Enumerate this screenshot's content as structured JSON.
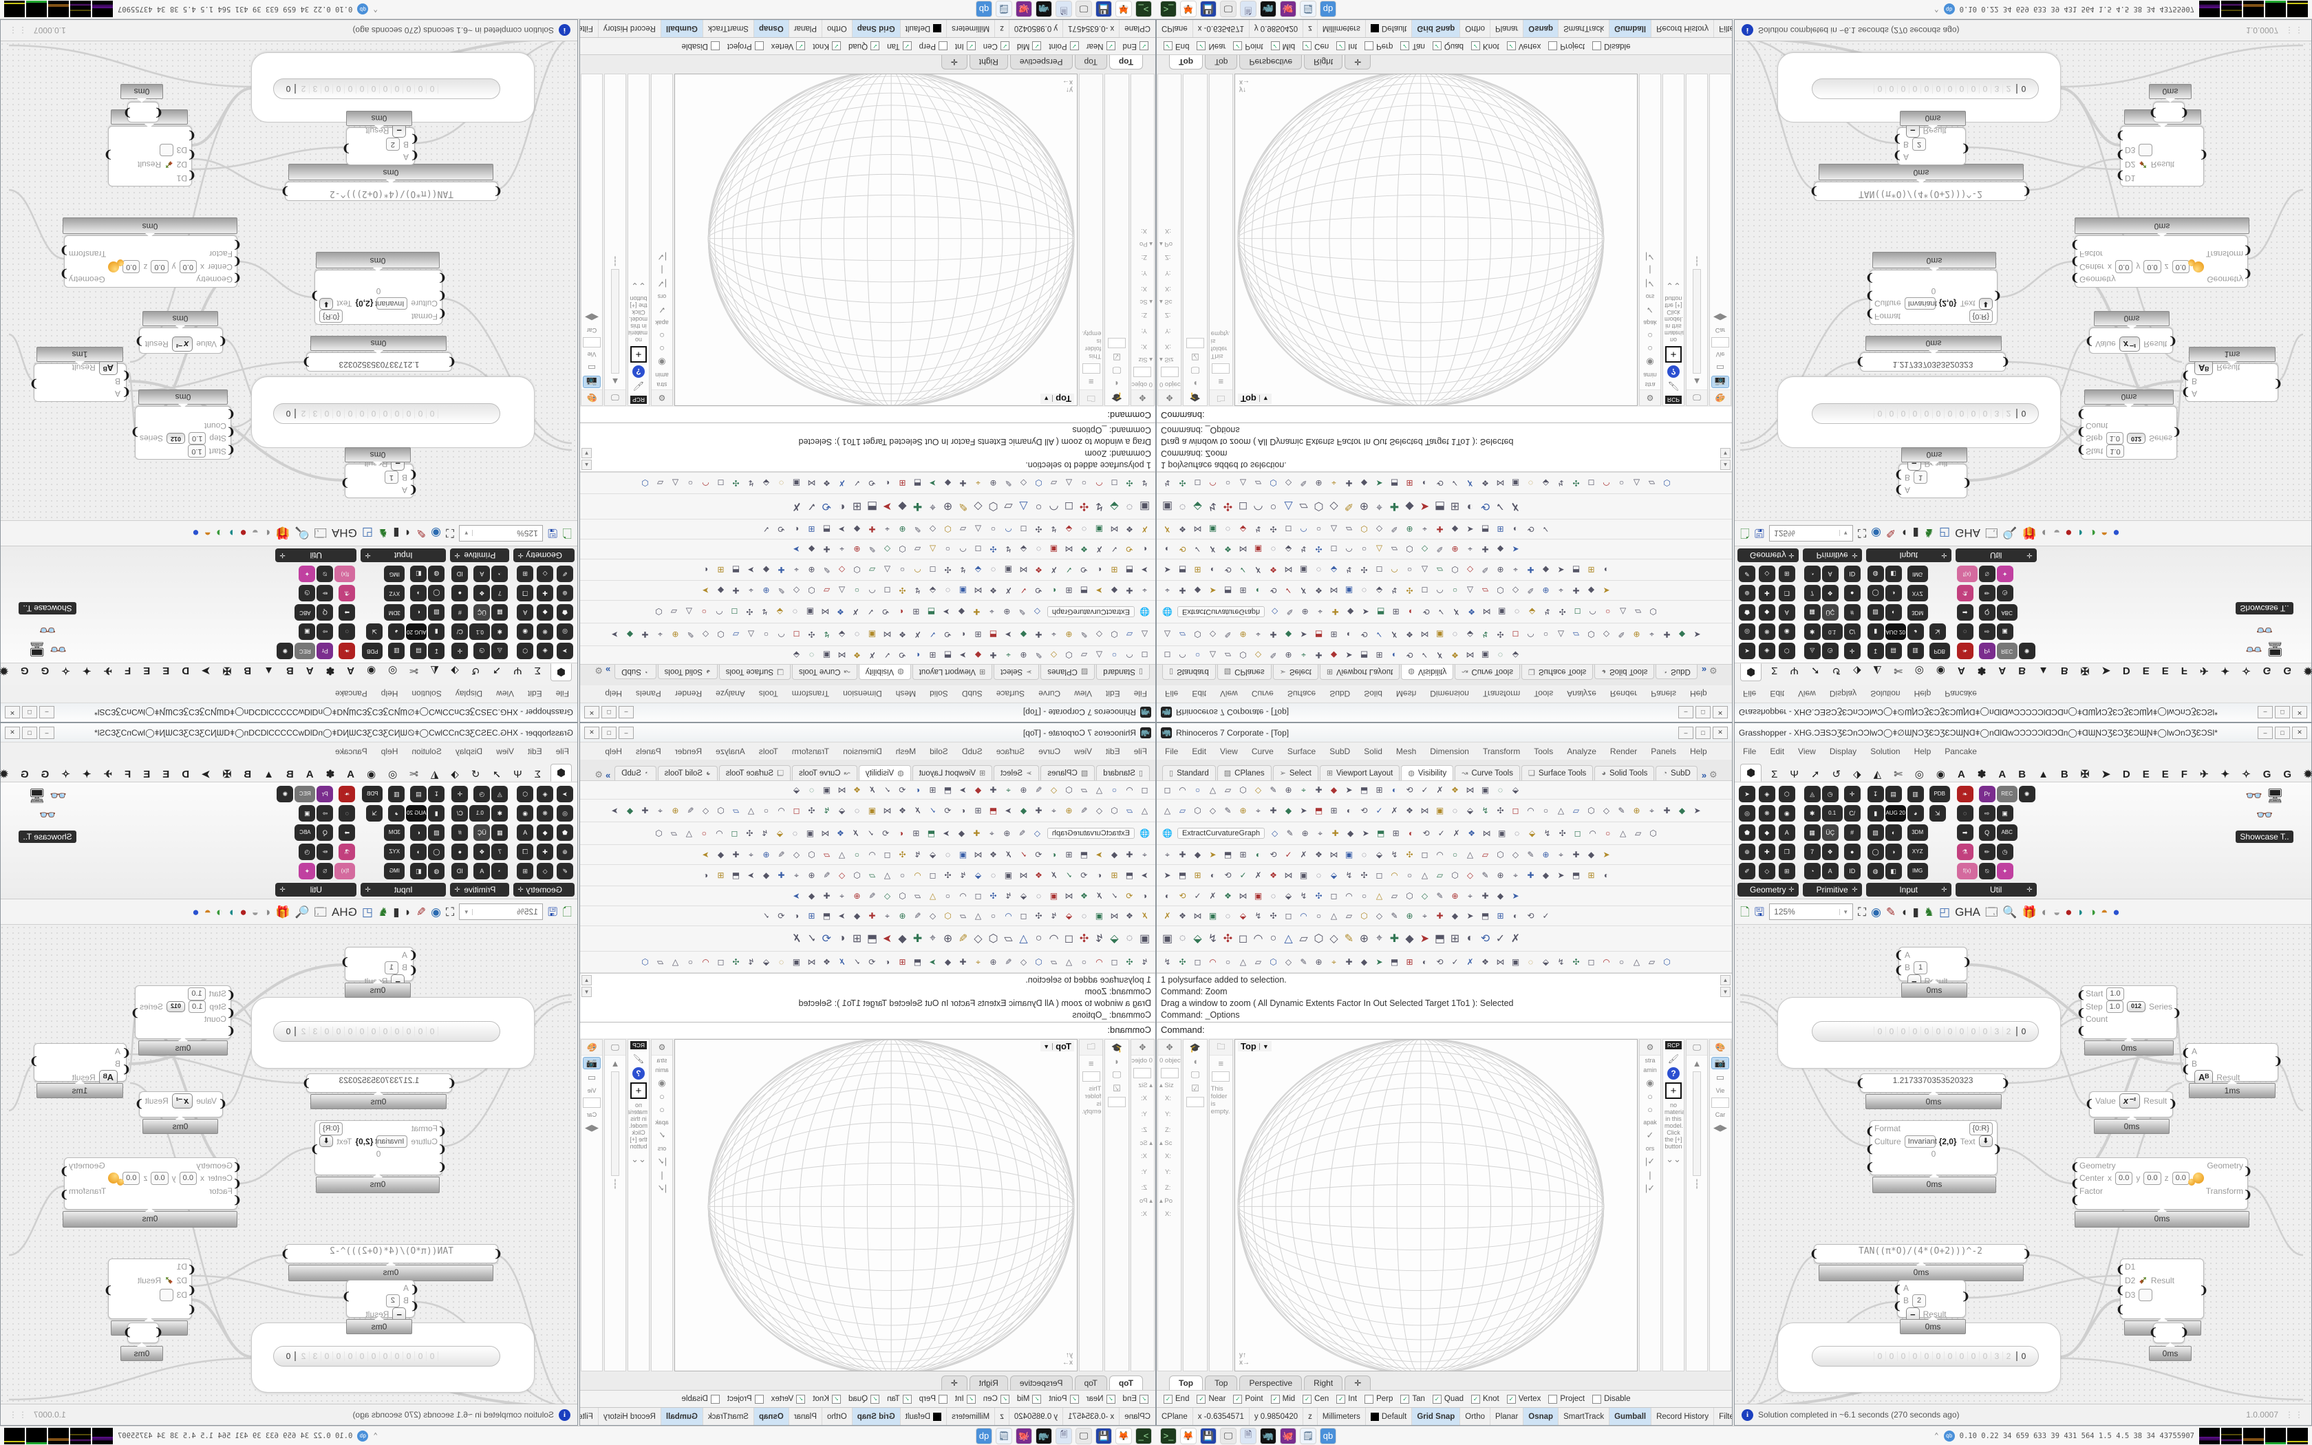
{
  "rhino": {
    "title": "Rhinoceros 7 Corporate - [Top]",
    "window_buttons": [
      "–",
      "□",
      "✕"
    ],
    "menu": [
      "File",
      "Edit",
      "View",
      "Curve",
      "Surface",
      "SubD",
      "Solid",
      "Mesh",
      "Dimension",
      "Transform",
      "Tools",
      "Analyze",
      "Render",
      "Panels",
      "Help"
    ],
    "toolbar_tabs": [
      {
        "icon": "▯",
        "label": "Standard",
        "active": false
      },
      {
        "icon": "▨",
        "label": "CPlanes",
        "active": false
      },
      {
        "icon": "➢",
        "label": "Select",
        "active": false
      },
      {
        "icon": "⊞",
        "label": "Viewport Layout",
        "active": false
      },
      {
        "icon": "◍",
        "label": "Visibility",
        "active": true
      },
      {
        "icon": "↝",
        "label": "Curve Tools",
        "active": false
      },
      {
        "icon": "❏",
        "label": "Surface Tools",
        "active": false
      },
      {
        "icon": "◕",
        "label": "Solid Tools",
        "active": false
      },
      {
        "icon": "◔",
        "label": "SubD",
        "active": false
      }
    ],
    "toolbar_overflow": "»",
    "toolbar_gear": "⚙",
    "toolbar_rows": [
      {
        "count": 24
      },
      {
        "count": 36
      },
      {
        "count": 26,
        "label": "ExtractCurvatureGraph"
      },
      {
        "count": 30
      },
      {
        "count": 30
      },
      {
        "count": 24
      },
      {
        "count": 26
      },
      {
        "count": 24
      },
      {
        "count": 34
      }
    ],
    "command_history": [
      "1 polysurface added to selection.",
      "Command: Zoom",
      "Drag a window to zoom ( All  Dynamic  Extents  Factor  In  Out  Selected  Target  1To1 ): Selected",
      "Command: _Options"
    ],
    "command_prompt": "Command:",
    "left_panels": {
      "boxedit": {
        "head_icon": "✥",
        "object_count": "0 object",
        "sections": [
          {
            "label": "Siz",
            "fields": [
              "X:",
              "Y:",
              "Z:"
            ]
          },
          {
            "label": "Sc",
            "fields": [
              "X:",
              "Y:",
              "Z:"
            ]
          },
          {
            "label": "Po",
            "fields": [
              "X:"
            ]
          }
        ]
      },
      "display_icons": [
        "🎓",
        "◖",
        "🖵",
        "☑"
      ],
      "notes": {
        "head_icon": "🗀",
        "text": "This folder is empty."
      }
    },
    "viewport": {
      "label": "Top",
      "dropdown": "▼",
      "axis_x": "x",
      "axis_y": "y"
    },
    "viewport_tabs": [
      {
        "label": "Top",
        "active": true
      },
      {
        "label": "Top",
        "active": false
      },
      {
        "label": "Perspective",
        "active": false
      },
      {
        "label": "Right",
        "active": false
      },
      {
        "label": "✛",
        "active": false
      }
    ],
    "right_panels": {
      "rcp_tab": "RCP",
      "material_hint": "no material in this model. Click the [+] button",
      "view_label": "Vie",
      "camera_label": "Car",
      "help_q": "?"
    },
    "osnap": [
      {
        "label": "End",
        "checked": true
      },
      {
        "label": "Near",
        "checked": true
      },
      {
        "label": "Point",
        "checked": true
      },
      {
        "label": "Mid",
        "checked": true
      },
      {
        "label": "Cen",
        "checked": true
      },
      {
        "label": "Int",
        "checked": true
      },
      {
        "label": "Perp",
        "checked": false
      },
      {
        "label": "Tan",
        "checked": true
      },
      {
        "label": "Quad",
        "checked": true
      },
      {
        "label": "Knot",
        "checked": true
      },
      {
        "label": "Vertex",
        "checked": true
      },
      {
        "label": "Project",
        "checked": false
      },
      {
        "label": "Disable",
        "checked": false
      }
    ],
    "status": [
      {
        "label": "CPlane",
        "on": false
      },
      {
        "label": "x -0.6354571",
        "on": false
      },
      {
        "label": "y 0.9850420",
        "on": false
      },
      {
        "label": "z",
        "on": false
      },
      {
        "label": "Millimeters",
        "on": false
      },
      {
        "label": "Default",
        "on": false,
        "swatch": true
      },
      {
        "label": "Grid Snap",
        "on": true
      },
      {
        "label": "Ortho",
        "on": false
      },
      {
        "label": "Planar",
        "on": false
      },
      {
        "label": "Osnap",
        "on": true
      },
      {
        "label": "SmartTrack",
        "on": false
      },
      {
        "label": "Gumball",
        "on": true
      },
      {
        "label": "Record History",
        "on": false
      },
      {
        "label": "Filter",
        "on": false
      },
      {
        "label": "A",
        "on": false
      }
    ]
  },
  "grasshopper": {
    "title": "Grasshopper - XHG.ƆƎSƆƷƐƆnƆƆƖwƆ◯ǂ∅ƜƝƆƷƐƆƷƐƆƜƝⱭǂ◯nⱭƖⱭwƆƆƆƆƆƖⱭƆⱭn◯ǂⱭƜƝƆƷƐƆƷƐƆƜƝǂ◯ƖwƆnƆƷƐƆSƖ*",
    "menu": [
      "File",
      "Edit",
      "View",
      "Display",
      "Solution",
      "Help",
      "Pancake"
    ],
    "ribbon_tabs": [
      "⬢",
      "Σ",
      "Ψ",
      "➚",
      "↺",
      "⬗",
      "◭",
      "✄",
      "◎",
      "◉"
    ],
    "plugin_tabs": [
      "A",
      "✽",
      "A",
      "B",
      "▲",
      "B",
      "✠",
      "➤",
      "D",
      "E",
      "E",
      "F",
      "✈",
      "✦",
      "✧",
      "G",
      "G",
      "✹",
      "T"
    ],
    "panels": [
      {
        "label": "Geometry",
        "plus": "✛",
        "icons": [
          "➤",
          "◎",
          "⬟",
          "⊕",
          "✐",
          "◈",
          "❋",
          "◆",
          "✚",
          "◇",
          "⬡",
          "◉",
          "A",
          "❒",
          "⊞"
        ]
      },
      {
        "label": "Primitive",
        "plus": "✛",
        "icons": [
          "◬",
          "✱",
          "▦",
          "7",
          "◔",
          "◷",
          "0.1",
          "ÜÇ",
          "❖",
          "A",
          "✛",
          "C/",
          "#",
          "●",
          "ID"
        ]
      },
      {
        "label": "Input",
        "plus": "✛",
        "icons": [
          "↧",
          "▮",
          "▧",
          "◯",
          "◍",
          "▤",
          "AUG 20",
          "◐",
          "◑",
          "◧",
          "▥",
          "◕",
          "3DM",
          "XYZ",
          "IMG",
          "PDB",
          "⇲"
        ]
      },
      {
        "label": "Util",
        "plus": "✛",
        "icons": [
          "❧",
          "◌",
          "➡",
          "⚗",
          "f(x)",
          "Pr",
          "⇨",
          "Q",
          "✏",
          "⍉",
          "REC",
          "▣",
          "ABC",
          "◷",
          "✦",
          "✺"
        ]
      }
    ],
    "showcase_label": "Showcase T..",
    "toolbar": {
      "zoom": "125%",
      "icons": [
        "🗋",
        "🖫",
        "⛶",
        "◉",
        "✎",
        "◖",
        "▮",
        "♞",
        "◰",
        "GHA",
        "🗔",
        "🔍",
        "🎁",
        "◐",
        "◒",
        "●",
        "◗",
        "◑",
        "◓",
        "●"
      ]
    },
    "status": {
      "message": "Solution completed in ~6.1 seconds (270 seconds ago)",
      "version": "1.0.0007",
      "grip": "⋮⋮"
    },
    "slider": {
      "digits": [
        "0",
        "0",
        "0",
        "0",
        "0",
        "0",
        "0",
        "0",
        "0",
        "0",
        "3",
        "2"
      ],
      "value": "0"
    },
    "nodes": {
      "subtract1": {
        "a": "A",
        "b": "B",
        "bval": "1",
        "op": "−",
        "out": "Result",
        "time": "0ms"
      },
      "series": {
        "in1": "Start",
        "v1": "1.0",
        "in2": "Step",
        "v2": "1.0",
        "icon": "012",
        "in3": "Count",
        "out": "Series",
        "time": "0ms"
      },
      "value_panel": {
        "text": "1.2173370353520323",
        "time": "0ms"
      },
      "power": {
        "a": "A",
        "b": "B",
        "op": "Aᴮ",
        "out": "Result",
        "time": "1ms"
      },
      "inverse": {
        "in": "Value",
        "op": "x⁻¹",
        "out": "Result",
        "time": "0ms"
      },
      "format": {
        "l1": "Format",
        "v1": "{0:R}",
        "l2": "Culture",
        "v2": "Invariant",
        "extra": "{2,0}",
        "out": "Text",
        "arrow": "⬇",
        "zero": "0",
        "time": "0ms"
      },
      "scale": {
        "in1": "Geometry",
        "center": "Center",
        "cx": "x",
        "cxv": "0.0",
        "cy": "y",
        "cyv": "0.0",
        "cz": "z",
        "czv": "0.0",
        "in3": "Factor",
        "out1": "Geometry",
        "out2": "Transform",
        "time": "0ms"
      },
      "expr_panel": {
        "text": "TAN((π*O)/(4*(O+2)))^-2",
        "time": "0ms"
      },
      "merge": {
        "d1": "D1",
        "d2": "D2",
        "d3": "D3",
        "icon": "➹",
        "out": "Result",
        "time": "0ms"
      },
      "subtract2": {
        "a": "A",
        "b": "B",
        "bval": "2",
        "op": "−",
        "out": "Result",
        "time": "0ms"
      },
      "tiny": {
        "time": "0ms"
      }
    }
  },
  "taskbar": {
    "apps": [
      {
        "name": "terminal",
        "glyph": ">_",
        "bg": "#1d3b1d",
        "fg": "#9fe19f"
      },
      {
        "name": "firefox",
        "glyph": "🦊",
        "bg": "#fff",
        "fg": "#e0622a"
      },
      {
        "name": "floppy-64",
        "glyph": "💾",
        "bg": "#2244aa",
        "fg": "#fff"
      },
      {
        "name": "screenshot",
        "glyph": "🖵",
        "bg": "#e8e8e8",
        "fg": "#333"
      },
      {
        "name": "scroll",
        "glyph": "🗎",
        "bg": "#dbe6f5",
        "fg": "#446"
      },
      {
        "name": "rhinoceros",
        "glyph": "🦏",
        "bg": "#111",
        "fg": "#fff"
      },
      {
        "name": "octopus",
        "glyph": "🐙",
        "bg": "#7a2d8e",
        "fg": "#fff"
      },
      {
        "name": "notes",
        "glyph": "🗒",
        "bg": "#eef4fb",
        "fg": "#357"
      },
      {
        "name": "qb-app",
        "glyph": "qb",
        "bg": "#4a90d9",
        "fg": "#fff"
      }
    ],
    "tray": {
      "collapse": "⌃",
      "qb": "qb",
      "stats": "0.10 0.22  34   659 633   39   431 564   1.5   4.5   38   34  43755907"
    }
  }
}
